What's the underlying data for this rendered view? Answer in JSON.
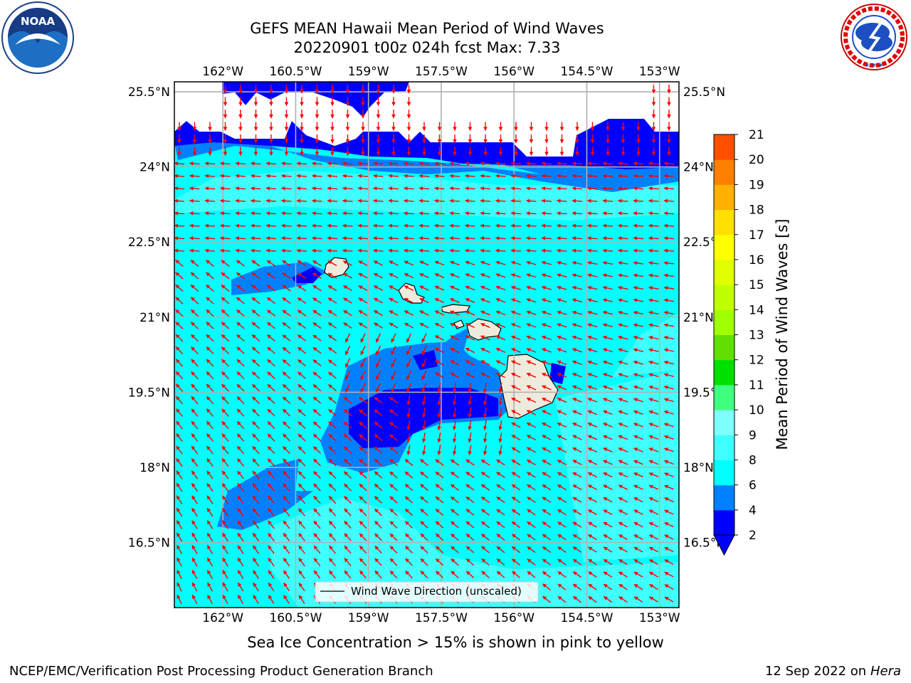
{
  "title": {
    "line1": "GEFS MEAN Hawaii Mean Period of Wind Waves",
    "line2": "20220901 t00z 024h fcst   Max: 7.33"
  },
  "map": {
    "lon_labels": [
      "162°W",
      "160.5°W",
      "159°W",
      "157.5°W",
      "156°W",
      "154.5°W",
      "153°W"
    ],
    "lat_labels": [
      "25.5°N",
      "24°N",
      "22.5°N",
      "21°N",
      "19.5°N",
      "18°N",
      "16.5°N"
    ],
    "lon_values": [
      -162,
      -160.5,
      -159,
      -157.5,
      -156,
      -154.5,
      -153
    ],
    "lat_values": [
      25.5,
      24,
      22.5,
      21,
      19.5,
      18,
      16.5
    ],
    "extent": {
      "lon_min": -163,
      "lon_max": -152.6,
      "lat_min": 15.2,
      "lat_max": 25.7
    },
    "legend_label": "Wind Wave Direction (unscaled)",
    "arrow_color": "#ff0000",
    "land_color": "#efebdc",
    "grid": true
  },
  "colorbar": {
    "label": "Mean Period of Wind Waves [s]",
    "ticks": [
      "2",
      "4",
      "6",
      "8",
      "9",
      "10",
      "11",
      "12",
      "13",
      "14",
      "15",
      "16",
      "17",
      "18",
      "19",
      "20",
      "21"
    ],
    "colors": [
      "#0000ff",
      "#0080ff",
      "#00ffff",
      "#40ffff",
      "#80ffff",
      "#40ff80",
      "#00e000",
      "#60e000",
      "#a0ff00",
      "#c0ff00",
      "#e0ff00",
      "#ffff00",
      "#ffe000",
      "#ffb000",
      "#ff8000",
      "#ff5000",
      "#ff2000"
    ],
    "under_color": "#0000ff"
  },
  "footer": {
    "caption": "Sea Ice Concentration > 15% is shown in pink to yellow",
    "branch": "NCEP/EMC/Verification Post Processing Product Generation Branch",
    "date": "12 Sep 2022 on",
    "host": "Hera"
  },
  "logos": {
    "noaa_text": "NOAA",
    "nws_text": "NATIONAL WEATHER SERVICE"
  }
}
